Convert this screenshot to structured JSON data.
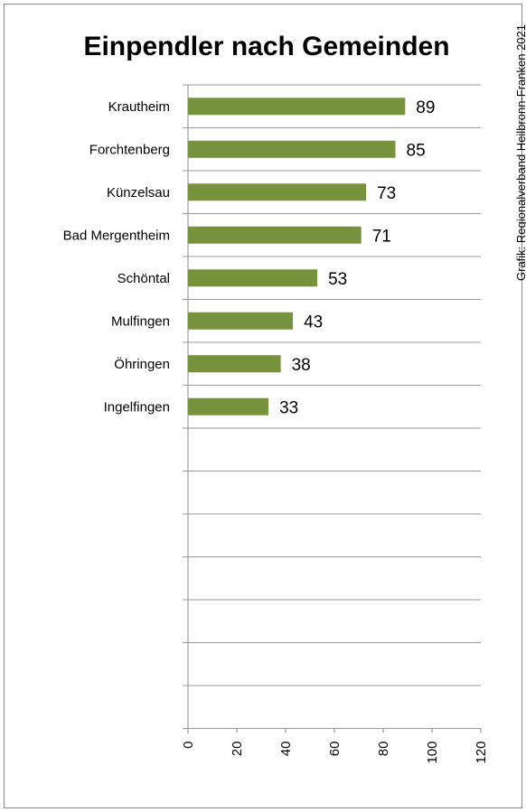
{
  "chart_data": {
    "type": "bar",
    "orientation": "horizontal",
    "title": "Einpendler nach Gemeinden",
    "source": "Grafik: Regionalverband Heilbronn-Franken 2021",
    "categories": [
      "Krautheim",
      "Forchtenberg",
      "Künzelsau",
      "Bad Mergentheim",
      "Schöntal",
      "Mulfingen",
      "Öhringen",
      "Ingelfingen"
    ],
    "values": [
      89,
      85,
      73,
      71,
      53,
      43,
      38,
      33
    ],
    "xlim": [
      0,
      120
    ],
    "ticks": [
      "0",
      "20",
      "40",
      "60",
      "80",
      "100",
      "120"
    ],
    "tick_values": [
      0,
      20,
      40,
      60,
      80,
      100,
      120
    ],
    "grid": true,
    "bar_color": "#76923c",
    "empty_rows_after_data": 7
  }
}
